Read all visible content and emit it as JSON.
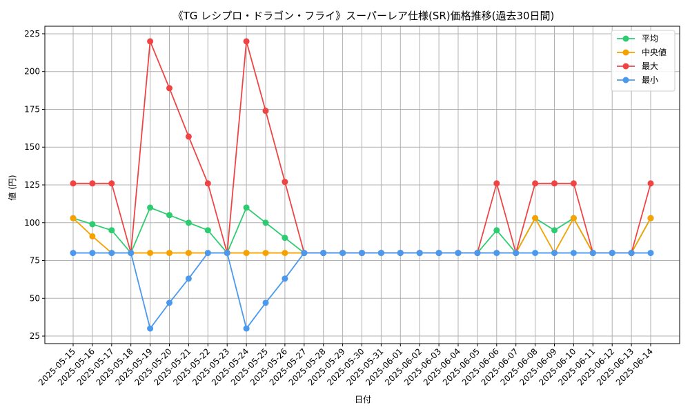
{
  "chart_data": {
    "type": "line",
    "title": "《TG レシプロ・ドラゴン・フライ》スーパーレア仕様(SR)価格推移(過去30日間)",
    "xlabel": "日付",
    "ylabel": "値 (円)",
    "ylim": [
      20,
      230
    ],
    "yticks": [
      25,
      50,
      75,
      100,
      125,
      150,
      175,
      200,
      225
    ],
    "grid": true,
    "legend_position": "top-right",
    "categories": [
      "2025-05-15",
      "2025-05-16",
      "2025-05-17",
      "2025-05-18",
      "2025-05-19",
      "2025-05-20",
      "2025-05-21",
      "2025-05-22",
      "2025-05-23",
      "2025-05-24",
      "2025-05-25",
      "2025-05-26",
      "2025-05-27",
      "2025-05-28",
      "2025-05-29",
      "2025-05-30",
      "2025-05-31",
      "2025-06-01",
      "2025-06-02",
      "2025-06-03",
      "2025-06-04",
      "2025-06-05",
      "2025-06-06",
      "2025-06-07",
      "2025-06-08",
      "2025-06-09",
      "2025-06-10",
      "2025-06-11",
      "2025-06-12",
      "2025-06-13",
      "2025-06-14"
    ],
    "series": [
      {
        "name": "平均",
        "color": "#2ecc71",
        "values": [
          103,
          99,
          95,
          80,
          110,
          105,
          100,
          95,
          80,
          110,
          100,
          90,
          80,
          80,
          80,
          80,
          80,
          80,
          80,
          80,
          80,
          80,
          95,
          80,
          103,
          95,
          103,
          80,
          80,
          80,
          103
        ]
      },
      {
        "name": "中央値",
        "color": "#f5a100",
        "values": [
          103,
          91,
          80,
          80,
          80,
          80,
          80,
          80,
          80,
          80,
          80,
          80,
          80,
          80,
          80,
          80,
          80,
          80,
          80,
          80,
          80,
          80,
          80,
          80,
          103,
          80,
          103,
          80,
          80,
          80,
          103
        ]
      },
      {
        "name": "最大",
        "color": "#ef4444",
        "values": [
          126,
          126,
          126,
          80,
          220,
          189,
          157,
          126,
          80,
          220,
          174,
          127,
          80,
          80,
          80,
          80,
          80,
          80,
          80,
          80,
          80,
          80,
          126,
          80,
          126,
          126,
          126,
          80,
          80,
          80,
          126
        ]
      },
      {
        "name": "最小",
        "color": "#4a99ee",
        "values": [
          80,
          80,
          80,
          80,
          30,
          47,
          63,
          80,
          80,
          30,
          47,
          63,
          80,
          80,
          80,
          80,
          80,
          80,
          80,
          80,
          80,
          80,
          80,
          80,
          80,
          80,
          80,
          80,
          80,
          80,
          80
        ]
      }
    ]
  }
}
